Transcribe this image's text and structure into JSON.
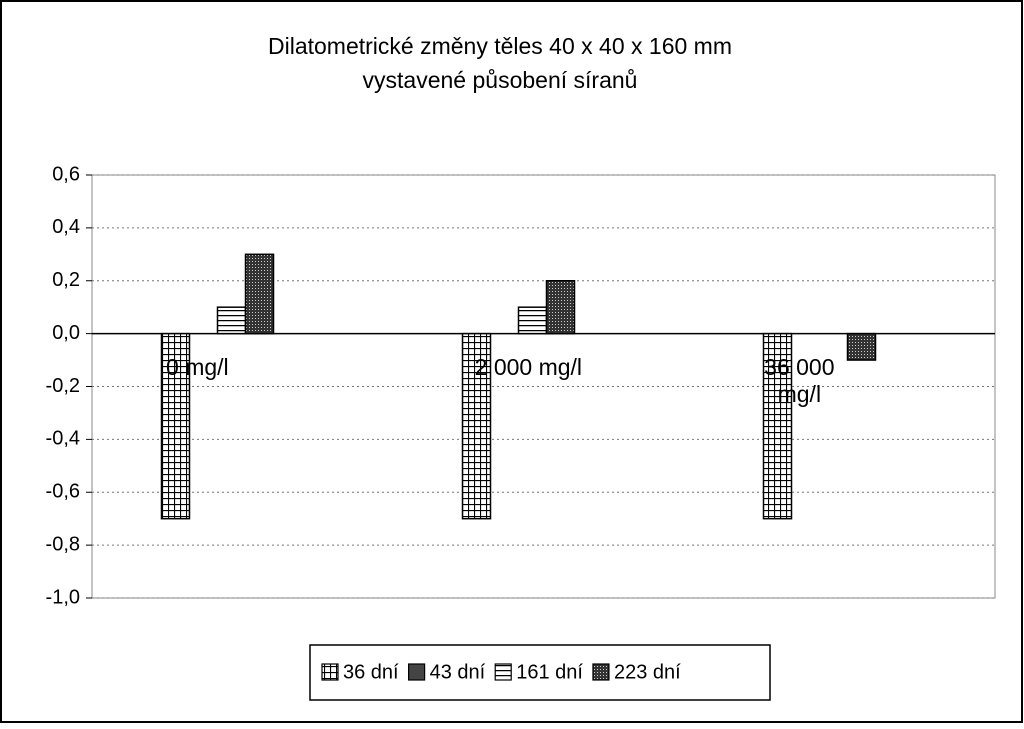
{
  "chart_data": {
    "type": "bar",
    "title": "Dilatometrické změny těles 40 x 40 x 160 mm",
    "subtitle": "vystavené působení síranů",
    "categories": [
      "0 mg/l",
      "2 000 mg/l",
      "36 000 mg/l"
    ],
    "series": [
      {
        "name": "36 dní",
        "color": "#000000",
        "pattern": "grid",
        "values": [
          -0.7,
          -0.7,
          -0.7
        ]
      },
      {
        "name": "43 dní",
        "color": "#000000",
        "pattern": "solid-gray",
        "values": [
          0,
          0,
          0
        ]
      },
      {
        "name": "161 dní",
        "color": "#000000",
        "pattern": "horizontal-lines",
        "values": [
          0.1,
          0.1,
          0
        ]
      },
      {
        "name": "223 dní",
        "color": "#000000",
        "pattern": "dots",
        "values": [
          0.3,
          0.2,
          -0.1
        ]
      }
    ],
    "ylim": [
      -1.0,
      0.6
    ],
    "yticks": [
      {
        "value": -1.0,
        "label": "-1,0"
      },
      {
        "value": -0.8,
        "label": "-0,8"
      },
      {
        "value": -0.6,
        "label": "-0,6"
      },
      {
        "value": -0.4,
        "label": "-0,4"
      },
      {
        "value": -0.2,
        "label": "-0,2"
      },
      {
        "value": 0,
        "label": "0,0"
      },
      {
        "value": 0.2,
        "label": "0,2"
      },
      {
        "value": 0.4,
        "label": "0,4"
      },
      {
        "value": 0.6,
        "label": "0,6"
      }
    ],
    "grid": true,
    "legend": "bottom"
  }
}
